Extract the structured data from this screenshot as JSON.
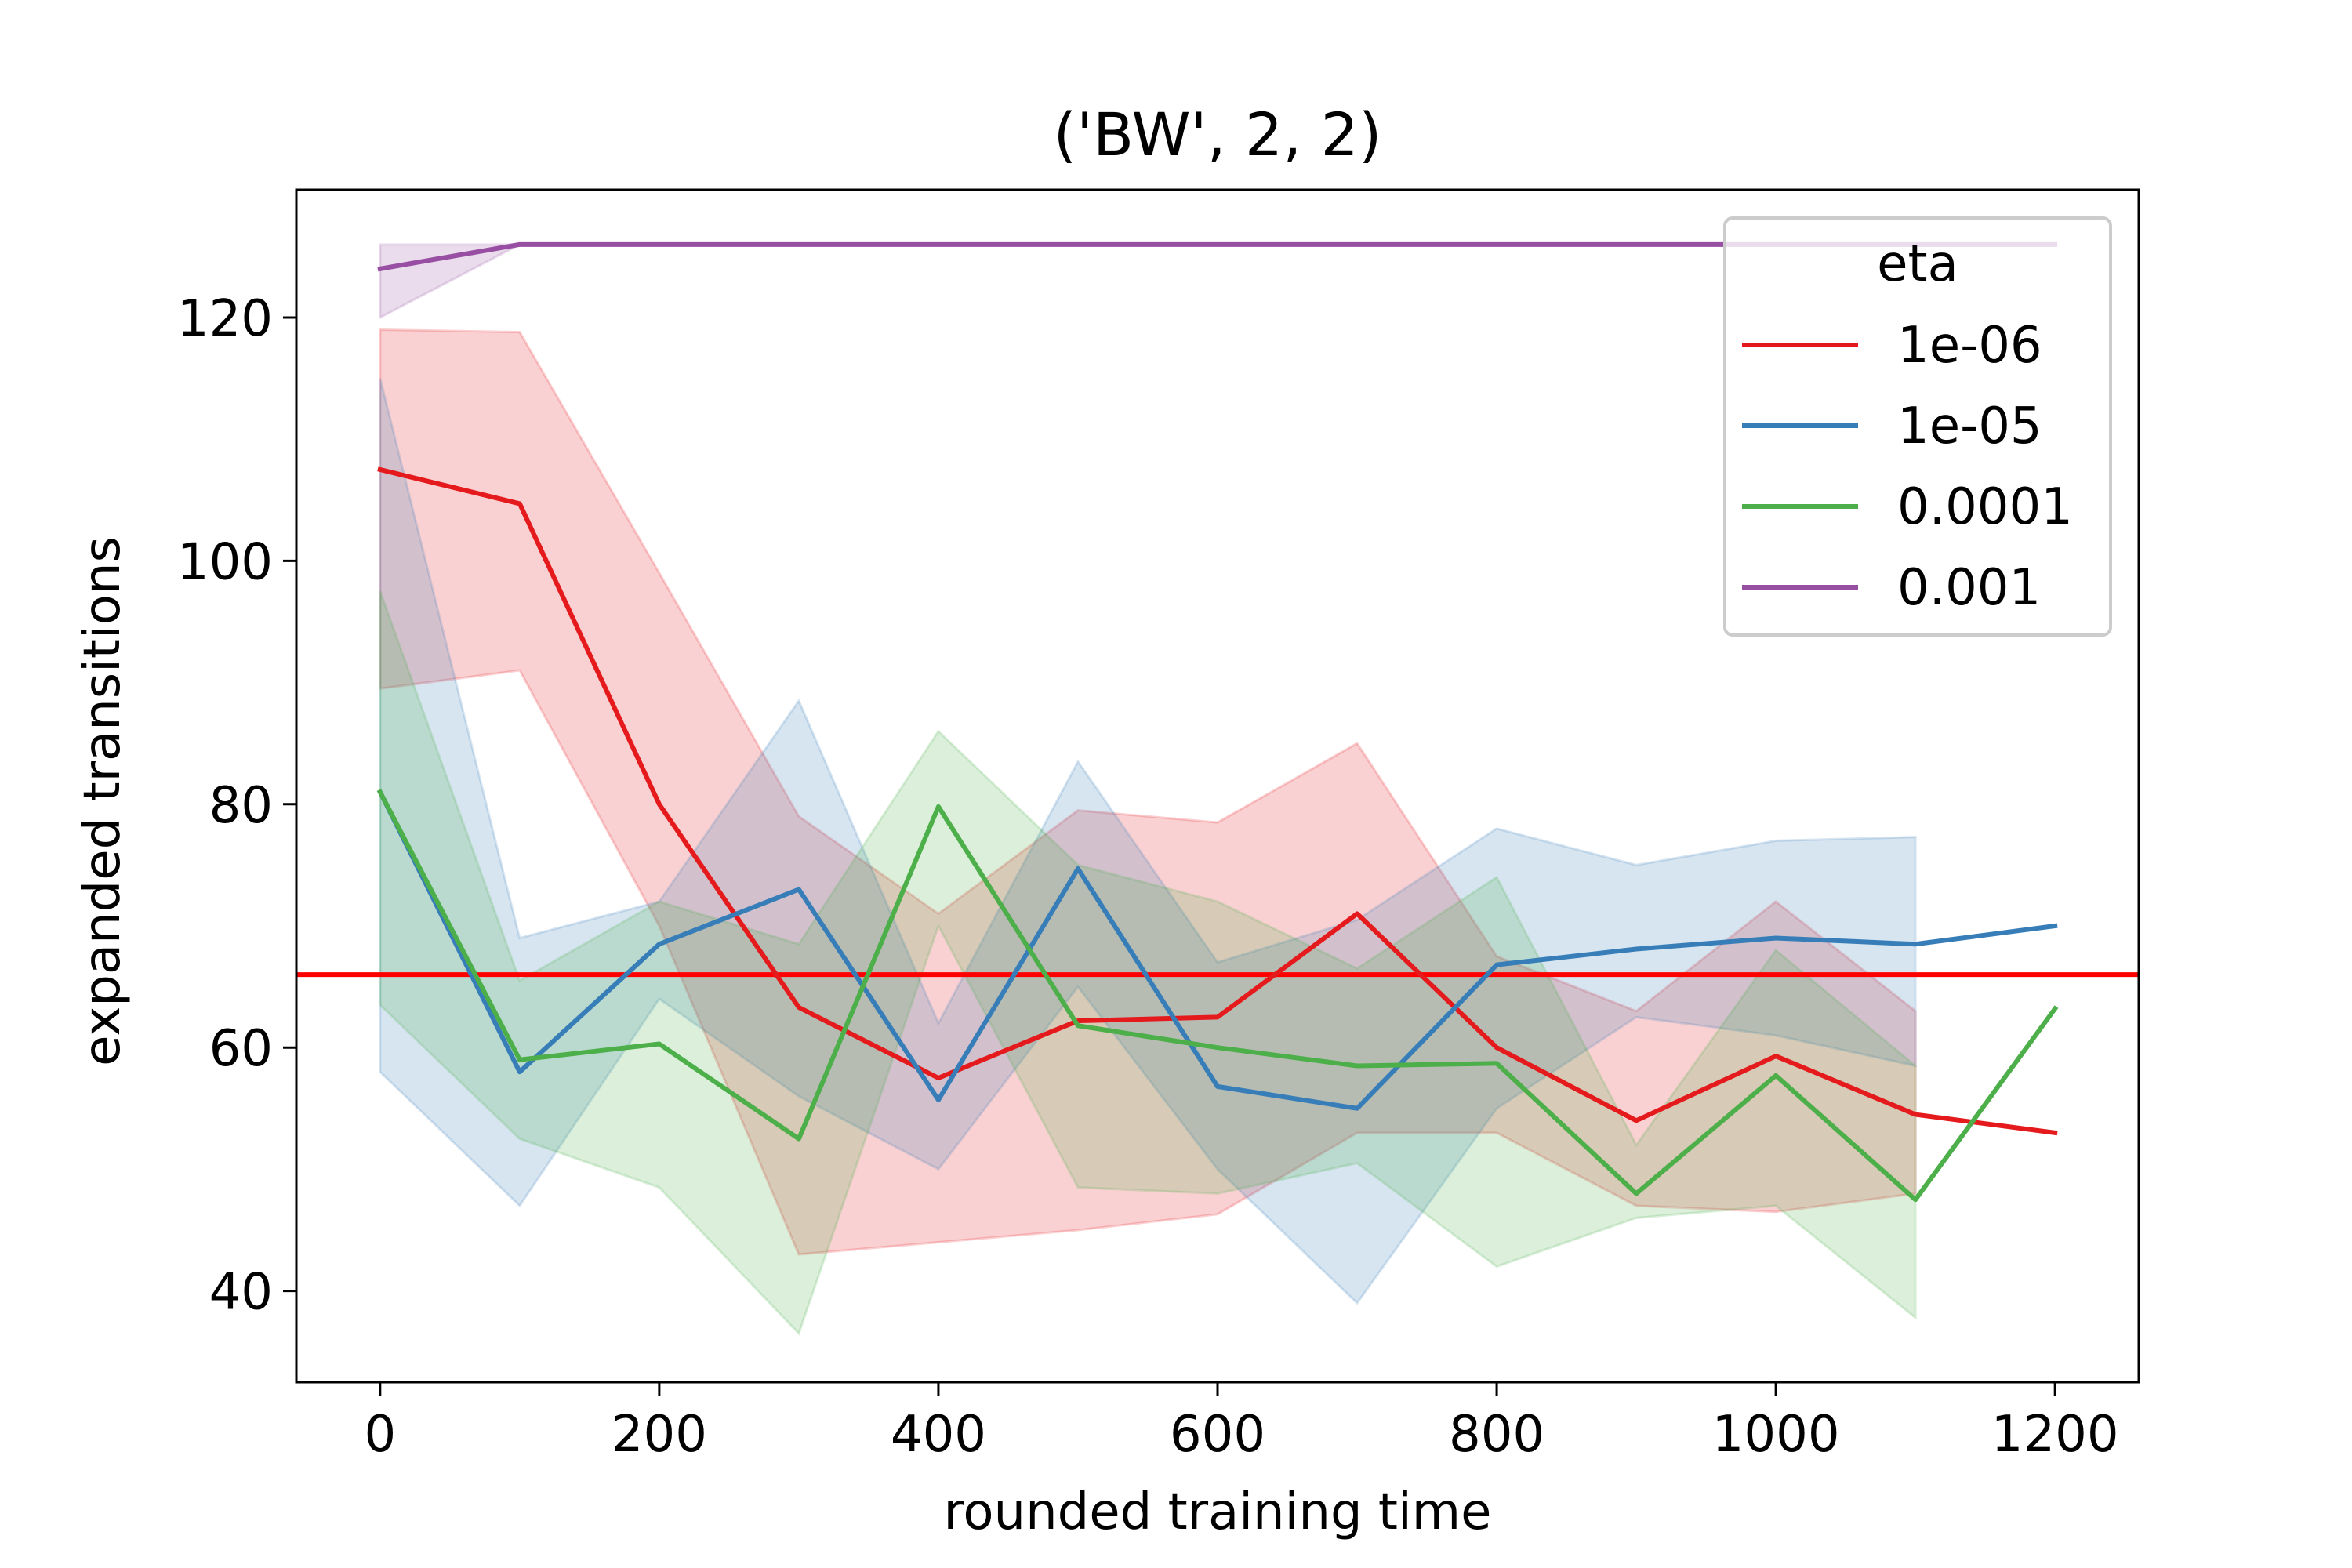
{
  "chart_data": {
    "type": "line",
    "title": "('BW', 2, 2)",
    "xlabel": "rounded training time",
    "ylabel": "expanded transitions",
    "xlim": [
      -60,
      1260
    ],
    "ylim": [
      32.5,
      130.5
    ],
    "xticks": [
      0,
      200,
      400,
      600,
      800,
      1000,
      1200
    ],
    "yticks": [
      40,
      60,
      80,
      100,
      120
    ],
    "grid": false,
    "legend": {
      "title": "eta",
      "placement": "top-right"
    },
    "reference_line": {
      "y": 66,
      "color": "#ff0000"
    },
    "series": [
      {
        "name": "1e-06",
        "color": "#e41a1c",
        "x": [
          0,
          100,
          200,
          300,
          400,
          500,
          600,
          700,
          800,
          900,
          1000,
          1100,
          1200
        ],
        "values": [
          107.5,
          104.7,
          80.0,
          63.3,
          57.5,
          62.2,
          62.5,
          71.0,
          60.0,
          54.0,
          59.3,
          54.5,
          53.0
        ],
        "band_x": [
          0,
          100,
          200,
          300,
          400,
          500,
          600,
          700,
          800,
          900,
          1000,
          1100
        ],
        "band_upper": [
          119.0,
          118.8,
          99.0,
          79.0,
          71.0,
          79.5,
          78.5,
          85.0,
          67.5,
          63.0,
          72.0,
          63.0
        ],
        "band_lower": [
          89.5,
          91.0,
          70.0,
          43.0,
          44.0,
          45.0,
          46.3,
          53.0,
          53.0,
          47.0,
          46.5,
          48.0
        ]
      },
      {
        "name": "1e-05",
        "color": "#377eb8",
        "x": [
          0,
          100,
          200,
          300,
          400,
          500,
          600,
          700,
          800,
          900,
          1000,
          1100,
          1200
        ],
        "values": [
          81.0,
          58.0,
          68.5,
          73.0,
          55.7,
          74.7,
          56.8,
          55.0,
          66.8,
          68.1,
          69.0,
          68.5,
          70.0
        ],
        "band_x": [
          0,
          100,
          200,
          300,
          400,
          500,
          600,
          700,
          800,
          900,
          1000,
          1100
        ],
        "band_upper": [
          115.0,
          69.0,
          72.0,
          88.5,
          62.0,
          83.5,
          67.0,
          70.5,
          78.0,
          75.0,
          77.0,
          77.3
        ],
        "band_lower": [
          58.0,
          47.0,
          64.0,
          56.0,
          50.0,
          65.0,
          50.0,
          39.0,
          55.0,
          62.5,
          61.0,
          58.5
        ]
      },
      {
        "name": "0.0001",
        "color": "#4daf4a",
        "x": [
          0,
          100,
          200,
          300,
          400,
          500,
          600,
          700,
          800,
          900,
          1000,
          1100,
          1200
        ],
        "values": [
          81.0,
          59.0,
          60.3,
          52.5,
          79.8,
          61.8,
          60.0,
          58.5,
          58.7,
          48.0,
          57.7,
          47.5,
          63.2
        ],
        "band_x": [
          0,
          100,
          200,
          300,
          400,
          500,
          600,
          700,
          800,
          900,
          1000,
          1100
        ],
        "band_upper": [
          97.5,
          65.5,
          72.0,
          68.5,
          86.0,
          75.0,
          72.0,
          66.5,
          74.0,
          52.0,
          68.0,
          58.5
        ],
        "band_lower": [
          63.5,
          52.5,
          48.5,
          36.5,
          70.0,
          48.5,
          48.0,
          50.5,
          42.0,
          46.0,
          47.0,
          37.8
        ]
      },
      {
        "name": "0.001",
        "color": "#984ea3",
        "x": [
          0,
          100,
          200,
          300,
          400,
          500,
          600,
          700,
          800,
          900,
          1000,
          1100,
          1200
        ],
        "values": [
          124.0,
          126.0,
          126.0,
          126.0,
          126.0,
          126.0,
          126.0,
          126.0,
          126.0,
          126.0,
          126.0,
          126.0,
          126.0
        ],
        "band_x": [
          0,
          100,
          200,
          300,
          400,
          500,
          600,
          700,
          800,
          900,
          1000,
          1100
        ],
        "band_upper": [
          126.0,
          126.0,
          126.0,
          126.0,
          126.0,
          126.0,
          126.0,
          126.0,
          126.0,
          126.0,
          126.0,
          126.0
        ],
        "band_lower": [
          120.0,
          126.0,
          126.0,
          126.0,
          126.0,
          126.0,
          126.0,
          126.0,
          126.0,
          126.0,
          126.0,
          126.0
        ]
      }
    ]
  }
}
